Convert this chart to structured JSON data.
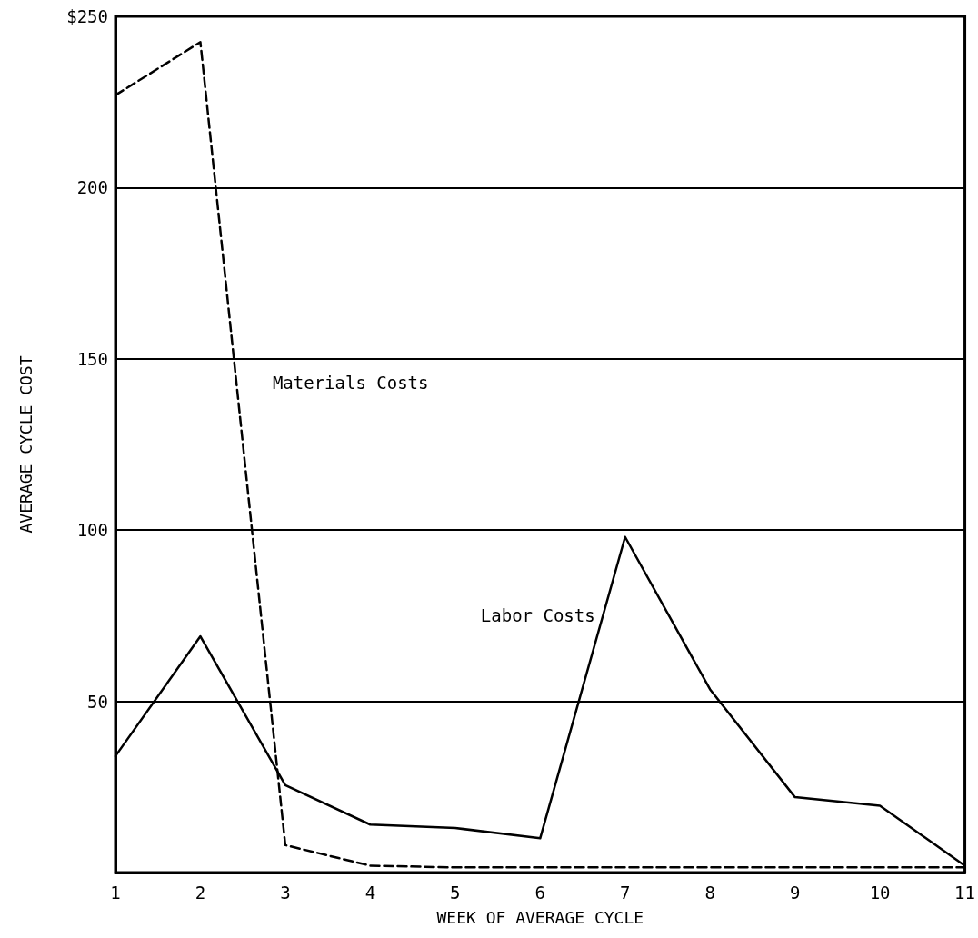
{
  "chart_data": {
    "type": "line",
    "xlabel": "WEEK OF AVERAGE CYCLE",
    "ylabel": "AVERAGE CYCLE COST",
    "x": [
      1,
      2,
      3,
      4,
      5,
      6,
      7,
      8,
      9,
      10,
      11
    ],
    "series": [
      {
        "name": "Materials Costs",
        "color": "#000000",
        "line_style": "dashed",
        "values": [
          227,
          242.5,
          8,
          2,
          1.5,
          1.5,
          1.5,
          1.5,
          1.5,
          1.5,
          1.5
        ]
      },
      {
        "name": "Labor Costs",
        "color": "#000000",
        "line_style": "solid",
        "values": [
          34,
          69,
          25.5,
          14,
          13,
          10,
          98,
          53.5,
          22,
          19.5,
          2
        ]
      }
    ],
    "xlim": [
      1,
      11
    ],
    "xticks": [
      1,
      2,
      3,
      4,
      5,
      6,
      7,
      8,
      9,
      10,
      11
    ],
    "ylim": [
      0,
      250
    ],
    "yticks": [
      50,
      100,
      150,
      200,
      {
        "value": 250,
        "label": "$250"
      }
    ],
    "grid": "y",
    "marker": "none",
    "legend": false
  }
}
